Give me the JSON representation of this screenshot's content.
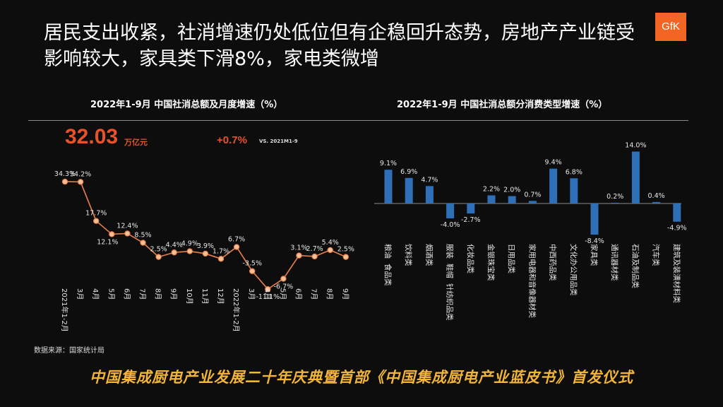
{
  "headline": "居民支出收紧，社消增速仍处低位但有企稳回升态势，房地产产业链受影响较大，家具类下滑8%，家电类微增",
  "logo_text": "GfK",
  "kpi": {
    "value": "32.03",
    "unit": "万亿元",
    "growth": "+0.7%",
    "vs": "VS. 2021M1-9"
  },
  "source": "数据来源：国家统计局",
  "banner": "中国集成厨电产业发展二十年庆典暨首部《中国集成厨电产业蓝皮书》首发仪式",
  "colors": {
    "accent": "#e8522a",
    "line": "#e8804a",
    "bar": "#2e6fb7",
    "banner": "#f2b53a"
  },
  "chart_data": [
    {
      "type": "line",
      "title": "2022年1-9月  中国社消总额及月度增速（%）",
      "categories": [
        "2021年1-2月",
        "3月",
        "4月",
        "5月",
        "6月",
        "7月",
        "8月",
        "9月",
        "10月",
        "11月",
        "12月",
        "2022年1-2月",
        "3月",
        "4月",
        "5月",
        "6月",
        "7月",
        "8月",
        "9月"
      ],
      "values": [
        34.3,
        34.2,
        17.7,
        12.1,
        12.4,
        8.5,
        2.5,
        4.4,
        4.9,
        3.9,
        1.7,
        6.7,
        -3.5,
        -11.1,
        -6.7,
        3.1,
        2.7,
        5.4,
        2.5
      ],
      "data_labels": [
        "34.3%",
        "34.2%",
        "17.7%",
        "12.1%",
        "12.4%",
        "8.5%",
        "2.5%",
        "4.4%",
        "4.9%",
        "3.9%",
        "1.7%",
        "6.7%",
        "-3.5%",
        "-11.1%",
        "-6.7%",
        "3.1%",
        "2.7%",
        "5.4%",
        "2.5%"
      ],
      "ylim": [
        -12,
        36
      ],
      "grid": false,
      "legend": "none"
    },
    {
      "type": "bar",
      "title": "2022年1-9月  中国社消总额分消费类型增速（%）",
      "categories": [
        "粮油、食品类",
        "饮料类",
        "烟酒类",
        "服装、鞋帽、针纺织品类",
        "化妆品类",
        "金银珠宝类",
        "日用品类",
        "家用电器和音像器材类",
        "中西药品类",
        "文化办公用品类",
        "家具类",
        "通讯器材类",
        "石油及制品类",
        "汽车类",
        "建筑及装潢材料类"
      ],
      "category_lines": [
        [
          "粮油",
          "食品类"
        ],
        [
          "饮料类"
        ],
        [
          "烟酒类"
        ],
        [
          "服装",
          "鞋帽",
          "针纺织品类"
        ],
        [
          "化妆品类"
        ],
        [
          "金银珠宝类"
        ],
        [
          "日用品类"
        ],
        [
          "家用电器和音像器材类"
        ],
        [
          "中西药品类"
        ],
        [
          "文化办公用品类"
        ],
        [
          "家具类"
        ],
        [
          "通讯器材类"
        ],
        [
          "石油及制品类"
        ],
        [
          "汽车类"
        ],
        [
          "建筑及装潢材料类"
        ]
      ],
      "values": [
        9.1,
        6.9,
        4.7,
        -4.0,
        -2.7,
        2.2,
        2.0,
        0.7,
        9.4,
        6.8,
        -8.4,
        0.2,
        14.0,
        0.4,
        -4.9
      ],
      "data_labels": [
        "9.1%",
        "6.9%",
        "4.7%",
        "-4.0%",
        "-2.7%",
        "2.2%",
        "2.0%",
        "0.7%",
        "9.4%",
        "6.8%",
        "-8.4%",
        "0.2%",
        "14.0%",
        "0.4%",
        "-4.9%"
      ],
      "ylim": [
        -10,
        16
      ],
      "grid": false,
      "legend": "none"
    }
  ]
}
